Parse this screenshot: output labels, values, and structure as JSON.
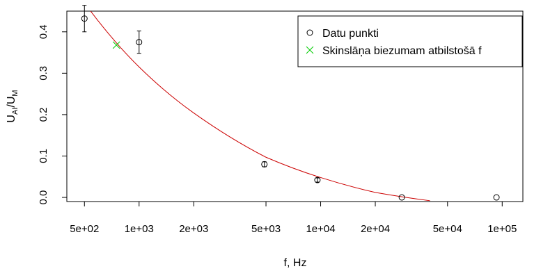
{
  "chart_data": {
    "type": "scatter",
    "title": "",
    "xlabel": "f, Hz",
    "ylabel": {
      "main": "U",
      "sub1": "AI",
      "sep": "/U",
      "sub2": "M"
    },
    "x_scale": "log",
    "xlim": [
      400,
      130000
    ],
    "ylim": [
      -0.01,
      0.45
    ],
    "grid": false,
    "legend_position": "top-right",
    "x_ticks": [
      {
        "value": 500,
        "label": "5e+02"
      },
      {
        "value": 1000,
        "label": "1e+03"
      },
      {
        "value": 2000,
        "label": "2e+03"
      },
      {
        "value": 5000,
        "label": "5e+03"
      },
      {
        "value": 10000,
        "label": "1e+04"
      },
      {
        "value": 20000,
        "label": "2e+04"
      },
      {
        "value": 50000,
        "label": "5e+04"
      },
      {
        "value": 100000,
        "label": "1e+05"
      }
    ],
    "y_ticks": [
      {
        "value": 0.0,
        "label": "0.0"
      },
      {
        "value": 0.1,
        "label": "0.1"
      },
      {
        "value": 0.2,
        "label": "0.2"
      },
      {
        "value": 0.3,
        "label": "0.3"
      },
      {
        "value": 0.4,
        "label": "0.4"
      }
    ],
    "series": [
      {
        "name": "Datu punkti",
        "marker": "circle",
        "color": "#000000",
        "points": [
          {
            "x": 500,
            "y": 0.432,
            "err": 0.032
          },
          {
            "x": 1000,
            "y": 0.375,
            "err": 0.027
          },
          {
            "x": 4900,
            "y": 0.08,
            "err": 0.006
          },
          {
            "x": 9600,
            "y": 0.042,
            "err": 0.005
          },
          {
            "x": 28000,
            "y": 0.0,
            "err": 0.0
          },
          {
            "x": 93000,
            "y": 0.0,
            "err": 0.0
          }
        ]
      },
      {
        "name": "Skinslāņa biezumam atbilstošā f",
        "marker": "cross",
        "color": "#00cc00",
        "points": [
          {
            "x": 750,
            "y": 0.368
          }
        ]
      }
    ],
    "fit_curve": {
      "color": "#cc0000",
      "points": [
        {
          "x": 500,
          "y": 0.47
        },
        {
          "x": 1000,
          "y": 0.315
        },
        {
          "x": 2000,
          "y": 0.204
        },
        {
          "x": 5000,
          "y": 0.097
        },
        {
          "x": 10000,
          "y": 0.048
        },
        {
          "x": 20000,
          "y": 0.012
        },
        {
          "x": 40000,
          "y": -0.008
        }
      ]
    }
  }
}
